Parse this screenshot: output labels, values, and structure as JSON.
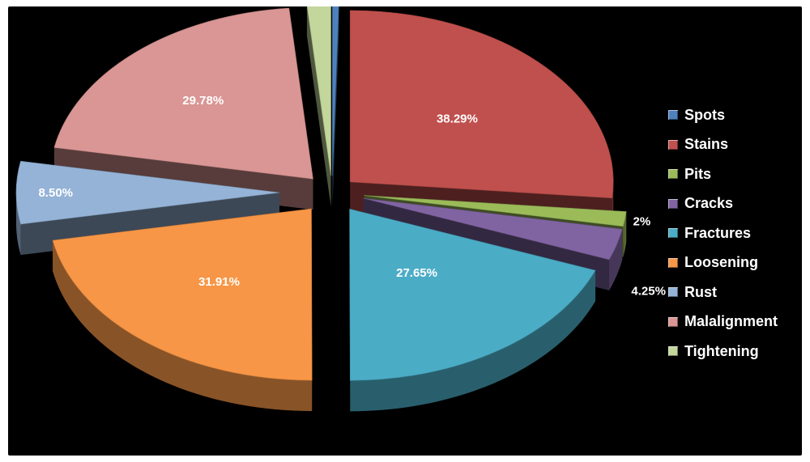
{
  "chart_data": {
    "type": "pie",
    "variant": "3d-exploded",
    "title": "",
    "legend_position": "right",
    "slices": [
      {
        "name": "Spots",
        "value": 0,
        "label": "0%",
        "color": "#4f81bd"
      },
      {
        "name": "Stains",
        "value": 38.29,
        "label": "38.29%",
        "color": "#c0504d"
      },
      {
        "name": "Pits",
        "value": 2,
        "label": "2%",
        "color": "#9bbb59"
      },
      {
        "name": "Cracks",
        "value": 4.25,
        "label": "4.25%",
        "color": "#8064a2"
      },
      {
        "name": "Fractures",
        "value": 27.65,
        "label": "27.65%",
        "color": "#4bacc6"
      },
      {
        "name": "Loosening",
        "value": 31.91,
        "label": "31.91%",
        "color": "#f79646"
      },
      {
        "name": "Rust",
        "value": 8.5,
        "label": "8.50%",
        "color": "#95b3d7"
      },
      {
        "name": "Malalignment",
        "value": 29.78,
        "label": "29.78%",
        "color": "#d99694"
      },
      {
        "name": "Tightening",
        "value": 2.1,
        "label": "2.10%",
        "color": "#c3d69b"
      }
    ]
  }
}
